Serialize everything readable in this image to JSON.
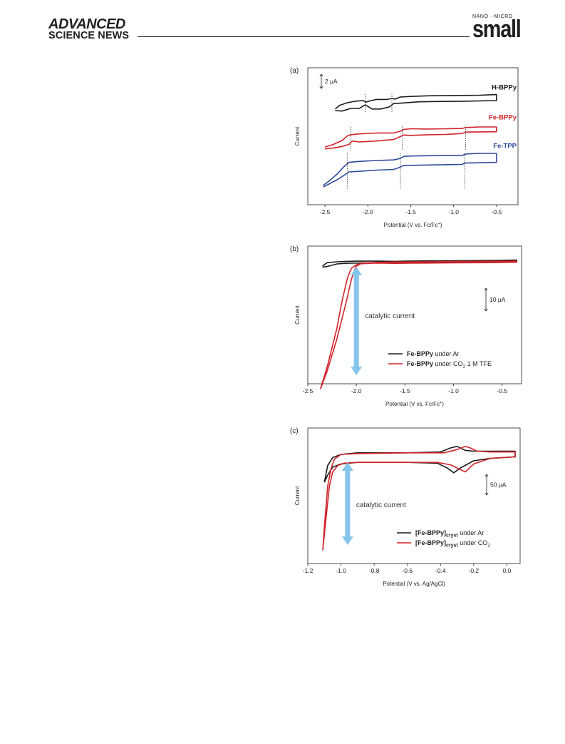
{
  "header": {
    "journal_line1": "ADVANCED",
    "journal_line2": "SCIENCE NEWS",
    "brand_small": "NANO · MICRO",
    "brand_big": "small"
  },
  "chart_data": [
    {
      "type": "line",
      "panel_label": "(a)",
      "xlabel": "Potential (V vs. Fc/Fc",
      "xlabel_sup": "+",
      "xlabel_end": ")",
      "ylabel": "Current",
      "xlim": [
        -2.7,
        -0.25
      ],
      "xticks": [
        -2.5,
        -2.0,
        -1.5,
        -1.0,
        -0.5
      ],
      "xtick_labels": [
        "-2.5",
        "-2.0",
        "-1.5",
        "-1.0",
        "-0.5"
      ],
      "scale_bar": "2 µA",
      "colors": {
        "H-BPPy": "#1a1a1a",
        "Fe-BPPy": "#d2232a",
        "Fe-TPP": "#2e4a9e"
      },
      "series": [
        {
          "name": "H-BPPy",
          "x": [
            -2.38,
            -2.3,
            -2.2,
            -2.1,
            -2.03,
            -1.95,
            -1.85,
            -1.75,
            -1.7,
            -1.6,
            -1.4,
            -1.2,
            -0.9,
            -0.5,
            -0.5,
            -0.7,
            -1.0,
            -1.3,
            -1.5,
            -1.62,
            -1.68,
            -1.72,
            -1.78,
            -1.9,
            -1.98,
            -2.02,
            -2.06,
            -2.15,
            -2.25,
            -2.33,
            -2.38
          ],
          "y": [
            2.55,
            2.53,
            2.62,
            2.62,
            2.74,
            2.6,
            2.6,
            2.67,
            2.78,
            2.8,
            2.84,
            2.85,
            2.86,
            2.88,
            3.08,
            3.06,
            3.05,
            3.04,
            3.02,
            3.0,
            2.93,
            2.95,
            2.92,
            2.92,
            2.87,
            2.83,
            2.88,
            2.86,
            2.8,
            2.72,
            2.6
          ]
        },
        {
          "name": "Fe-BPPy",
          "x": [
            -2.5,
            -2.4,
            -2.3,
            -2.22,
            -2.18,
            -2.1,
            -1.9,
            -1.7,
            -1.62,
            -1.58,
            -1.5,
            -1.3,
            -1.1,
            -0.9,
            -0.86,
            -0.8,
            -0.5,
            -0.5,
            -0.7,
            -0.86,
            -0.9,
            -1.1,
            -1.3,
            -1.5,
            -1.58,
            -1.62,
            -1.7,
            -1.9,
            -2.1,
            -2.2,
            -2.24,
            -2.3,
            -2.4,
            -2.5
          ],
          "y": [
            1.27,
            1.3,
            1.35,
            1.42,
            1.53,
            1.5,
            1.53,
            1.58,
            1.68,
            1.73,
            1.72,
            1.74,
            1.75,
            1.78,
            1.83,
            1.83,
            1.84,
            2.0,
            2.0,
            1.98,
            1.95,
            1.94,
            1.93,
            1.94,
            1.92,
            1.86,
            1.8,
            1.8,
            1.77,
            1.74,
            1.7,
            1.55,
            1.42,
            1.33
          ]
        },
        {
          "name": "Fe-TPP",
          "x": [
            -2.52,
            -2.45,
            -2.35,
            -2.27,
            -2.22,
            -2.1,
            -1.9,
            -1.7,
            -1.64,
            -1.58,
            -1.5,
            -1.3,
            -1.1,
            -0.9,
            -0.87,
            -0.8,
            -0.5,
            -0.5,
            -0.7,
            -0.85,
            -0.9,
            -1.1,
            -1.3,
            -1.5,
            -1.58,
            -1.62,
            -1.7,
            -1.9,
            -2.1,
            -2.22,
            -2.27,
            -2.35,
            -2.45,
            -2.52
          ],
          "y": [
            0.0,
            0.1,
            0.25,
            0.4,
            0.5,
            0.52,
            0.56,
            0.58,
            0.64,
            0.72,
            0.72,
            0.73,
            0.74,
            0.75,
            0.8,
            0.8,
            0.82,
            1.12,
            1.12,
            1.1,
            1.05,
            1.05,
            1.04,
            1.03,
            1.02,
            0.95,
            0.9,
            0.88,
            0.85,
            0.82,
            0.7,
            0.45,
            0.2,
            0.05
          ]
        }
      ],
      "dotted_markers": [
        {
          "series": "H-BPPy",
          "x": [
            -2.03,
            -1.72
          ]
        },
        {
          "series": "Fe-BPPy",
          "x": [
            -2.2,
            -1.6,
            -0.86
          ]
        },
        {
          "series": "Fe-TPP",
          "x": [
            -2.24,
            -1.62,
            -0.87
          ]
        }
      ]
    },
    {
      "type": "line",
      "panel_label": "(b)",
      "xlabel": "Potential (V vs. Fc/Fc",
      "xlabel_sup": "+",
      "xlabel_end": ")",
      "ylabel": "Current",
      "xlim": [
        -2.5,
        -0.3
      ],
      "xticks": [
        -2.5,
        -2.0,
        -1.5,
        -1.0,
        -0.5
      ],
      "xtick_labels": [
        "-2.5",
        "-2.0",
        "-1.5",
        "-1.0",
        "-0.5"
      ],
      "scale_bar": "10 µA",
      "annotation": "catalytic current",
      "legend_location": "lower right",
      "legend": [
        {
          "bold": "Fe-BPPy",
          "text": " under Ar",
          "color": "#1a1a1a"
        },
        {
          "bold": "Fe-BPPy",
          "text": " under CO",
          "sub": "2",
          "text_end": " 1 M TFE",
          "color": "#d2232a"
        }
      ],
      "series": [
        {
          "name": "Fe-BPPy under Ar",
          "color": "#1a1a1a",
          "x": [
            -2.35,
            -2.3,
            -2.2,
            -2.1,
            -2.0,
            -1.8,
            -1.6,
            -1.5,
            -1.3,
            -1.0,
            -0.6,
            -0.35,
            -0.35,
            -0.6,
            -1.0,
            -1.3,
            -1.5,
            -1.6,
            -1.8,
            -2.0,
            -2.1,
            -2.2,
            -2.3,
            -2.35
          ],
          "y": [
            -1.5,
            -1.2,
            0.0,
            0.3,
            0.4,
            0.5,
            0.3,
            0.4,
            0.6,
            0.7,
            0.7,
            0.8,
            1.8,
            1.6,
            1.5,
            1.4,
            1.3,
            1.2,
            1.3,
            1.3,
            1.2,
            1.0,
            0.6,
            -1.0
          ]
        },
        {
          "name": "Fe-BPPy under CO2 1 M TFE",
          "color": "#d2232a",
          "x": [
            -2.37,
            -2.3,
            -2.2,
            -2.15,
            -2.1,
            -2.07,
            -2.05,
            -2.02,
            -1.98,
            -1.9,
            -1.8,
            -1.6,
            -1.3,
            -1.0,
            -0.6,
            -0.35,
            -0.35,
            -0.6,
            -1.0,
            -1.3,
            -1.6,
            -1.8,
            -1.95,
            -2.0,
            -2.02,
            -2.05,
            -2.1,
            -2.2,
            -2.3,
            -2.37
          ],
          "y": [
            -58.5,
            -48,
            -30,
            -18,
            -8,
            -4,
            -2,
            -1,
            0.0,
            0.2,
            0.4,
            0.3,
            0.4,
            0.5,
            0.6,
            0.8,
            1.3,
            1.2,
            1.1,
            1.0,
            0.9,
            0.7,
            0.2,
            -1.0,
            -3,
            -7,
            -17,
            -35,
            -50,
            -58.5
          ]
        }
      ]
    },
    {
      "type": "line",
      "panel_label": "(c)",
      "xlabel": "Potential (V vs. Ag/AgCl)",
      "ylabel": "Current",
      "xlim": [
        -1.2,
        0.08
      ],
      "xticks": [
        -1.2,
        -1.0,
        -0.8,
        -0.6,
        -0.4,
        -0.2,
        0.0
      ],
      "xtick_labels": [
        "-1.2",
        "-1.0",
        "-0.8",
        "-0.6",
        "-0.4",
        "-0.2",
        "0.0"
      ],
      "scale_bar": "50 µA",
      "annotation": "catalytic current",
      "legend_location": "lower right",
      "legend": [
        {
          "bold": "[Fe-BPPy]",
          "bold_sub": "cryst",
          "text": " under Ar",
          "color": "#1a1a1a"
        },
        {
          "bold": "[Fe-BPPy]",
          "bold_sub": "cryst",
          "text": " under CO",
          "sub": "2",
          "color": "#d2232a"
        }
      ],
      "series": [
        {
          "name": "[Fe-BPPy]cryst under Ar",
          "color": "#1a1a1a",
          "x": [
            -1.1,
            -1.08,
            -1.05,
            -1.0,
            -0.95,
            -0.9,
            -0.6,
            -0.42,
            -0.36,
            -0.32,
            -0.28,
            -0.2,
            -0.1,
            0.05,
            0.05,
            -0.1,
            -0.2,
            -0.25,
            -0.3,
            -0.34,
            -0.4,
            -0.6,
            -0.9,
            -1.0,
            -1.05,
            -1.08,
            -1.1
          ],
          "y": [
            -35,
            -26,
            -16,
            -12,
            -11,
            -10,
            -10,
            -11,
            -17,
            -23,
            -17,
            -8,
            -5,
            -3,
            4,
            4,
            4,
            5,
            10,
            8,
            3,
            2,
            2,
            0,
            -4,
            -14,
            -35
          ]
        },
        {
          "name": "[Fe-BPPy]cryst under CO2",
          "color": "#d2232a",
          "x": [
            -1.11,
            -1.09,
            -1.07,
            -1.05,
            -1.02,
            -0.98,
            -0.9,
            -0.6,
            -0.42,
            -0.34,
            -0.29,
            -0.25,
            -0.2,
            -0.1,
            0.05,
            0.05,
            -0.1,
            -0.18,
            -0.22,
            -0.25,
            -0.3,
            -0.38,
            -0.6,
            -0.9,
            -1.0,
            -1.04,
            -1.06,
            -1.08,
            -1.1,
            -1.11
          ],
          "y": [
            -120,
            -80,
            -40,
            -22,
            -14,
            -11,
            -10,
            -10,
            -10,
            -13,
            -18,
            -22,
            -12,
            -5,
            -3,
            3,
            3,
            4,
            8,
            10,
            6,
            2,
            2,
            1,
            0,
            -6,
            -18,
            -40,
            -90,
            -120
          ]
        }
      ]
    }
  ]
}
